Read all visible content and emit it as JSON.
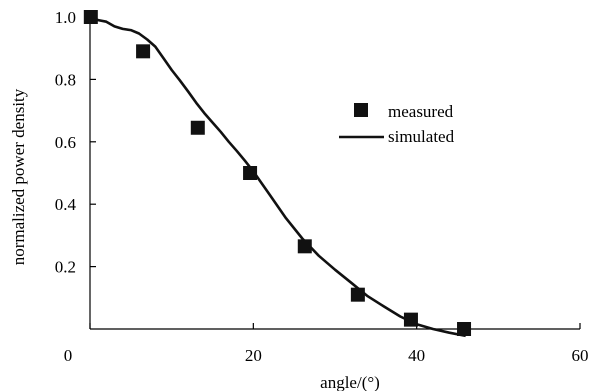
{
  "chart_data": {
    "type": "scatter",
    "title": "",
    "xlabel": "angle/(°)",
    "ylabel": "normalized power density",
    "xlim": [
      0,
      60
    ],
    "ylim": [
      0,
      1.0
    ],
    "x_ticks": [
      0,
      20,
      40,
      60
    ],
    "x_tick_labels": [
      "0",
      "20",
      "40",
      "60"
    ],
    "y_ticks": [
      0.2,
      0.4,
      0.6,
      0.8,
      1.0
    ],
    "y_tick_labels": [
      "0.2",
      "0.4",
      "0.6",
      "0.8",
      "1.0"
    ],
    "grid": false,
    "legend_position": "right-middle",
    "series": [
      {
        "name": "measured",
        "style": "square-markers",
        "color": "#111111",
        "x": [
          0.1,
          6.5,
          13.2,
          19.6,
          26.3,
          32.8,
          39.3,
          45.8
        ],
        "y": [
          1.0,
          0.89,
          0.645,
          0.5,
          0.265,
          0.11,
          0.03,
          0.0
        ]
      },
      {
        "name": "simulated",
        "style": "line",
        "color": "#111111",
        "x": [
          0,
          1,
          2,
          3,
          4,
          5,
          6,
          7,
          8,
          9,
          10,
          11,
          12,
          13,
          14,
          15,
          16,
          17,
          18,
          19,
          20,
          22,
          24,
          26,
          28,
          30,
          32,
          34,
          36,
          38,
          40,
          42,
          44,
          46
        ],
        "y": [
          1.0,
          0.99,
          0.985,
          0.97,
          0.962,
          0.958,
          0.947,
          0.928,
          0.905,
          0.868,
          0.83,
          0.797,
          0.762,
          0.725,
          0.692,
          0.662,
          0.632,
          0.6,
          0.57,
          0.538,
          0.505,
          0.43,
          0.355,
          0.29,
          0.235,
          0.19,
          0.148,
          0.105,
          0.072,
          0.04,
          0.015,
          0.0,
          -0.012,
          -0.022
        ]
      }
    ]
  }
}
